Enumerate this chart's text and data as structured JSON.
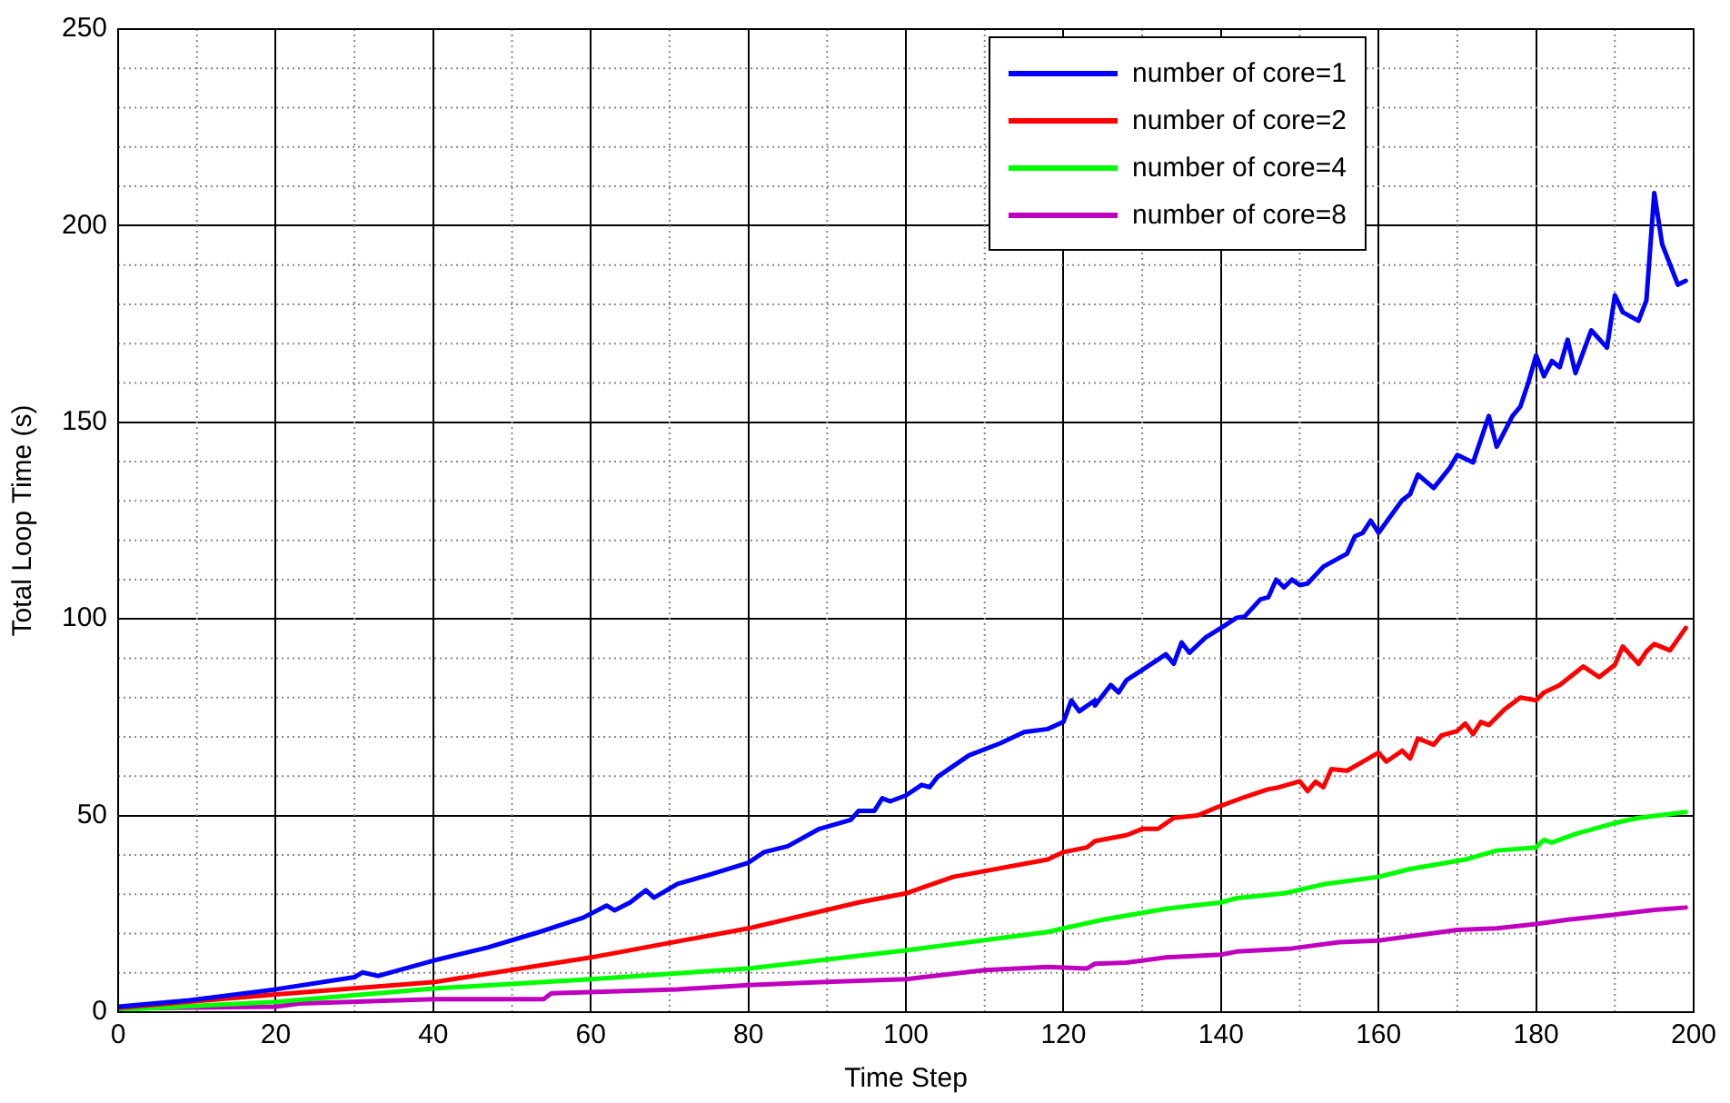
{
  "chart_data": {
    "type": "line",
    "xlabel": "Time Step",
    "ylabel": "Total Loop Time (s)",
    "xlim": [
      0,
      200
    ],
    "ylim": [
      0,
      250
    ],
    "xticks": [
      0,
      20,
      40,
      60,
      80,
      100,
      120,
      140,
      160,
      180,
      200
    ],
    "yticks": [
      0,
      50,
      100,
      150,
      200,
      250
    ],
    "grid": true,
    "legend": "top right",
    "marker": "none",
    "line_style": "solid",
    "series": [
      {
        "name": "number of core=1",
        "color": "#0000ff",
        "x": [
          0,
          9,
          20,
          30,
          31,
          33,
          40,
          47,
          53,
          59,
          62,
          63,
          65,
          67,
          68,
          71,
          75,
          80,
          82,
          85,
          89,
          93,
          94,
          96,
          97,
          98,
          100,
          102,
          103,
          104,
          108,
          112,
          115,
          118,
          120,
          121,
          122,
          124,
          124,
          126,
          127,
          128,
          130,
          133,
          134,
          135,
          136,
          138,
          140,
          142,
          143,
          145,
          146,
          147,
          148,
          149,
          150,
          151,
          153,
          156,
          157,
          158,
          159,
          160,
          163,
          164,
          165,
          167,
          169,
          170,
          172,
          174,
          175,
          177,
          178,
          179,
          180,
          181,
          182,
          183,
          184,
          185,
          187,
          189,
          190,
          191,
          193,
          194,
          195,
          196,
          198,
          199
        ],
        "values": [
          1.4,
          3,
          5.8,
          8.9,
          10.1,
          9.2,
          13.1,
          16.5,
          20.1,
          24,
          27.1,
          25.9,
          27.9,
          31,
          29.1,
          32.6,
          34.9,
          38,
          40.7,
          42.2,
          46.6,
          48.9,
          51.2,
          51.2,
          54.4,
          53.6,
          55.1,
          57.8,
          57.2,
          59.8,
          65.3,
          68.4,
          71.2,
          72,
          73.8,
          79.3,
          76.5,
          79.3,
          78,
          83.2,
          81.3,
          84.4,
          87,
          91,
          88.6,
          94,
          91.4,
          95.2,
          97.7,
          100.3,
          100.6,
          105,
          105.5,
          110,
          108,
          110,
          108.6,
          109,
          113.3,
          116.6,
          121,
          121.9,
          125,
          121.9,
          130.2,
          131.7,
          136.7,
          133.3,
          138.3,
          141.7,
          139.8,
          151.6,
          143.8,
          151.6,
          154,
          160,
          167,
          161.7,
          165.6,
          164,
          171,
          162.5,
          173.4,
          169,
          182.3,
          178,
          175.8,
          181,
          208.3,
          195.3,
          185,
          186
        ]
      },
      {
        "name": "number of core=2",
        "color": "#ff0000",
        "x": [
          0,
          20,
          40,
          60,
          80,
          94,
          100,
          106,
          118,
          120,
          123,
          124,
          128,
          130,
          132,
          134,
          137,
          140,
          143,
          146,
          147,
          150,
          151,
          152,
          153,
          154,
          156,
          158,
          160,
          161,
          163,
          164,
          165,
          167,
          168,
          170,
          171,
          172,
          173,
          174,
          176,
          178,
          180,
          181,
          183,
          186,
          188,
          190,
          191,
          193,
          194,
          195,
          197,
          199
        ],
        "values": [
          1.1,
          4.5,
          7.6,
          13.9,
          21.3,
          27.9,
          30.2,
          34.4,
          38.8,
          40.7,
          41.9,
          43.5,
          45,
          46.6,
          46.6,
          49.4,
          50,
          52.5,
          54.7,
          56.7,
          57,
          58.7,
          56.2,
          58.6,
          57.2,
          61.8,
          61.4,
          63.7,
          66,
          63.7,
          66.5,
          64.5,
          69.6,
          68,
          70.4,
          71.5,
          73.4,
          70.7,
          73.8,
          73,
          77,
          80,
          79.3,
          81.3,
          83.2,
          87.9,
          85.2,
          88.3,
          93,
          88.6,
          91.7,
          93.6,
          92,
          97.7
        ]
      },
      {
        "name": "number of core=4",
        "color": "#00ff00",
        "x": [
          0,
          20,
          40,
          60,
          80,
          100,
          118,
          120,
          125,
          133,
          140,
          142,
          148,
          153,
          160,
          164,
          171,
          175,
          180,
          181,
          182,
          185,
          190,
          193,
          199
        ],
        "values": [
          0.6,
          2.6,
          6,
          8.4,
          11.1,
          15.7,
          20.4,
          21.3,
          23.5,
          26.3,
          27.9,
          29,
          30.2,
          32.5,
          34.4,
          36.4,
          38.8,
          41.1,
          41.9,
          43.8,
          43.1,
          45.3,
          48.1,
          49.4,
          50.9
        ]
      },
      {
        "name": "number of core=8",
        "color": "#bf00bf",
        "x": [
          0,
          20,
          23,
          40,
          54,
          55,
          71,
          80,
          89,
          100,
          110,
          118,
          123,
          124,
          128,
          130,
          133,
          140,
          142,
          149,
          155,
          160,
          164,
          170,
          175,
          180,
          184,
          190,
          195,
          199
        ],
        "values": [
          1,
          1.4,
          2.2,
          3.3,
          3.3,
          4.8,
          5.8,
          6.9,
          7.6,
          8.4,
          10.7,
          11.5,
          11.1,
          12.3,
          12.6,
          13.1,
          13.9,
          14.6,
          15.4,
          16.2,
          17.8,
          18.2,
          19.3,
          20.9,
          21.3,
          22.4,
          23.5,
          24.8,
          26,
          26.6
        ]
      }
    ]
  }
}
